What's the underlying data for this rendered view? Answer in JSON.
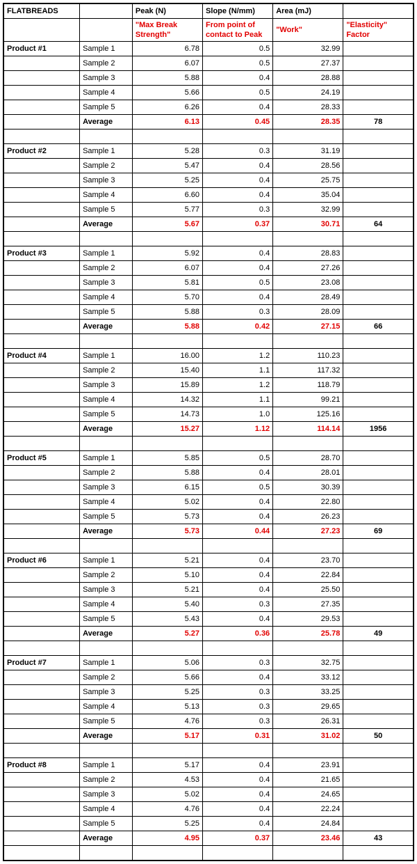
{
  "colors": {
    "red": "#e20000",
    "black": "#000000",
    "bg": "#ffffff"
  },
  "fontsize_pt": 8,
  "header": {
    "title": "FLATBREADS",
    "cols": {
      "peak": {
        "label": "Peak (N)",
        "sub": "\"Max Break Strength\""
      },
      "slope": {
        "label": "Slope (N/mm)",
        "sub": "From point of contact to Peak"
      },
      "area": {
        "label": "Area (mJ)",
        "sub": "\"Work\""
      },
      "elastic": {
        "sub": "\"Elasticity\" Factor"
      }
    }
  },
  "labels": {
    "sample": [
      "Sample 1",
      "Sample 2",
      "Sample 3",
      "Sample 4",
      "Sample 5"
    ],
    "average": "Average"
  },
  "products": [
    {
      "name": "Product #1",
      "rows": [
        {
          "p": "6.78",
          "s": "0.5",
          "a": "32.99"
        },
        {
          "p": "6.07",
          "s": "0.5",
          "a": "27.37"
        },
        {
          "p": "5.88",
          "s": "0.4",
          "a": "28.88"
        },
        {
          "p": "5.66",
          "s": "0.5",
          "a": "24.19"
        },
        {
          "p": "6.26",
          "s": "0.4",
          "a": "28.33"
        }
      ],
      "avg": {
        "p": "6.13",
        "s": "0.45",
        "a": "28.35"
      },
      "elastic": "78"
    },
    {
      "name": "Product #2",
      "rows": [
        {
          "p": "5.28",
          "s": "0.3",
          "a": "31.19"
        },
        {
          "p": "5.47",
          "s": "0.4",
          "a": "28.56"
        },
        {
          "p": "5.25",
          "s": "0.4",
          "a": "25.75"
        },
        {
          "p": "6.60",
          "s": "0.4",
          "a": "35.04"
        },
        {
          "p": "5.77",
          "s": "0.3",
          "a": "32.99"
        }
      ],
      "avg": {
        "p": "5.67",
        "s": "0.37",
        "a": "30.71"
      },
      "elastic": "64"
    },
    {
      "name": "Product #3",
      "rows": [
        {
          "p": "5.92",
          "s": "0.4",
          "a": "28.83"
        },
        {
          "p": "6.07",
          "s": "0.4",
          "a": "27.26"
        },
        {
          "p": "5.81",
          "s": "0.5",
          "a": "23.08"
        },
        {
          "p": "5.70",
          "s": "0.4",
          "a": "28.49"
        },
        {
          "p": "5.88",
          "s": "0.3",
          "a": "28.09"
        }
      ],
      "avg": {
        "p": "5.88",
        "s": "0.42",
        "a": "27.15"
      },
      "elastic": "66"
    },
    {
      "name": "Product #4",
      "rows": [
        {
          "p": "16.00",
          "s": "1.2",
          "a": "110.23"
        },
        {
          "p": "15.40",
          "s": "1.1",
          "a": "117.32"
        },
        {
          "p": "15.89",
          "s": "1.2",
          "a": "118.79"
        },
        {
          "p": "14.32",
          "s": "1.1",
          "a": "99.21"
        },
        {
          "p": "14.73",
          "s": "1.0",
          "a": "125.16"
        }
      ],
      "avg": {
        "p": "15.27",
        "s": "1.12",
        "a": "114.14"
      },
      "elastic": "1956"
    },
    {
      "name": "Product #5",
      "rows": [
        {
          "p": "5.85",
          "s": "0.5",
          "a": "28.70"
        },
        {
          "p": "5.88",
          "s": "0.4",
          "a": "28.01"
        },
        {
          "p": "6.15",
          "s": "0.5",
          "a": "30.39"
        },
        {
          "p": "5.02",
          "s": "0.4",
          "a": "22.80"
        },
        {
          "p": "5.73",
          "s": "0.4",
          "a": "26.23"
        }
      ],
      "avg": {
        "p": "5.73",
        "s": "0.44",
        "a": "27.23"
      },
      "elastic": "69"
    },
    {
      "name": "Product #6",
      "rows": [
        {
          "p": "5.21",
          "s": "0.4",
          "a": "23.70"
        },
        {
          "p": "5.10",
          "s": "0.4",
          "a": "22.84"
        },
        {
          "p": "5.21",
          "s": "0.4",
          "a": "25.50"
        },
        {
          "p": "5.40",
          "s": "0.3",
          "a": "27.35"
        },
        {
          "p": "5.43",
          "s": "0.4",
          "a": "29.53"
        }
      ],
      "avg": {
        "p": "5.27",
        "s": "0.36",
        "a": "25.78"
      },
      "elastic": "49"
    },
    {
      "name": "Product #7",
      "rows": [
        {
          "p": "5.06",
          "s": "0.3",
          "a": "32.75"
        },
        {
          "p": "5.66",
          "s": "0.4",
          "a": "33.12"
        },
        {
          "p": "5.25",
          "s": "0.3",
          "a": "33.25"
        },
        {
          "p": "5.13",
          "s": "0.3",
          "a": "29.65"
        },
        {
          "p": "4.76",
          "s": "0.3",
          "a": "26.31"
        }
      ],
      "avg": {
        "p": "5.17",
        "s": "0.31",
        "a": "31.02"
      },
      "elastic": "50"
    },
    {
      "name": "Product #8",
      "rows": [
        {
          "p": "5.17",
          "s": "0.4",
          "a": "23.91"
        },
        {
          "p": "4.53",
          "s": "0.4",
          "a": "21.65"
        },
        {
          "p": "5.02",
          "s": "0.4",
          "a": "24.65"
        },
        {
          "p": "4.76",
          "s": "0.4",
          "a": "22.24"
        },
        {
          "p": "5.25",
          "s": "0.4",
          "a": "24.84"
        }
      ],
      "avg": {
        "p": "4.95",
        "s": "0.37",
        "a": "23.46"
      },
      "elastic": "43"
    }
  ]
}
